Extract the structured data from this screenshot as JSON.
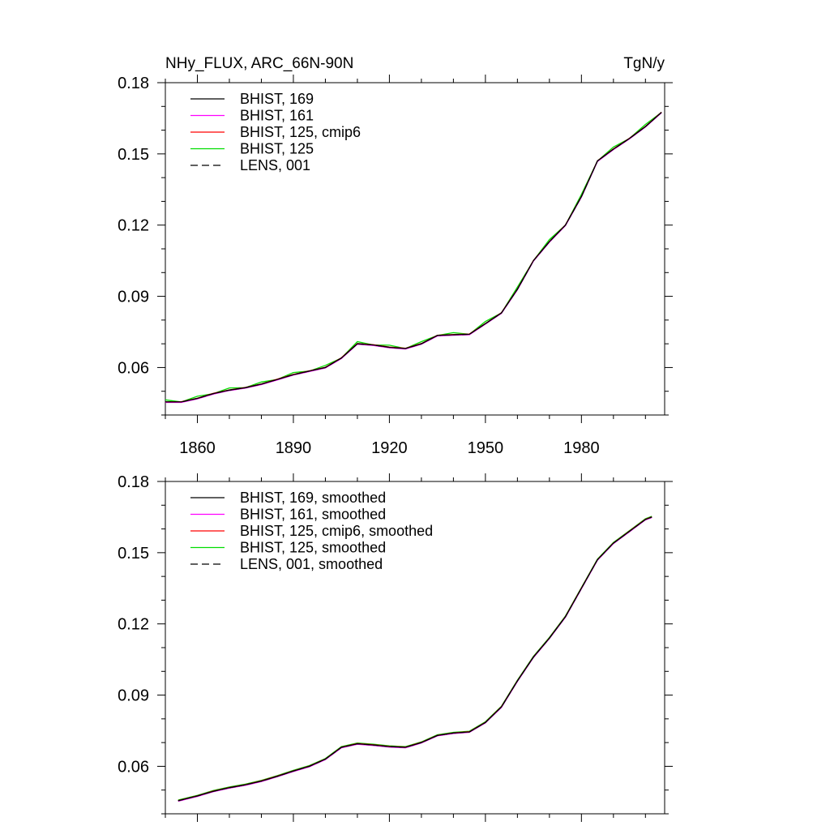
{
  "chart_data": [
    {
      "type": "line",
      "title_left": "NHy_FLUX, ARC_66N-90N",
      "title_right": "TgN/y",
      "xlim": [
        1850,
        2006
      ],
      "ylim": [
        0.04,
        0.18
      ],
      "x_ticks": [
        1860,
        1890,
        1920,
        1950,
        1980
      ],
      "y_ticks": [
        0.06,
        0.09,
        0.12,
        0.15,
        0.18
      ],
      "y_tick_labels": [
        "0.06",
        "0.09",
        "0.12",
        "0.15",
        "0.18"
      ],
      "x_tick_labels": [
        "1860",
        "1890",
        "1920",
        "1950",
        "1980"
      ],
      "legend_position": "top-left",
      "series": [
        {
          "name": "BHIST, 169",
          "color": "#000000",
          "dash": false
        },
        {
          "name": "BHIST, 161",
          "color": "#ff00ff",
          "dash": false
        },
        {
          "name": "BHIST, 125, cmip6",
          "color": "#ff0000",
          "dash": false
        },
        {
          "name": "BHIST, 125",
          "color": "#00dd00",
          "dash": false
        },
        {
          "name": "LENS, 001",
          "color": "#000000",
          "dash": true
        }
      ],
      "x": [
        1850,
        1855,
        1860,
        1865,
        1870,
        1875,
        1880,
        1885,
        1890,
        1895,
        1900,
        1905,
        1910,
        1915,
        1920,
        1925,
        1930,
        1935,
        1940,
        1945,
        1950,
        1955,
        1960,
        1965,
        1970,
        1975,
        1980,
        1985,
        1990,
        1995,
        2000,
        2005
      ],
      "y": [
        0.0455,
        0.0455,
        0.047,
        0.049,
        0.0505,
        0.0515,
        0.053,
        0.055,
        0.057,
        0.0585,
        0.06,
        0.064,
        0.07,
        0.0695,
        0.0685,
        0.068,
        0.07,
        0.0735,
        0.0738,
        0.074,
        0.0785,
        0.083,
        0.093,
        0.105,
        0.113,
        0.12,
        0.132,
        0.147,
        0.152,
        0.1565,
        0.1615,
        0.1675
      ]
    },
    {
      "type": "line",
      "xlim": [
        1850,
        2006
      ],
      "ylim": [
        0.04,
        0.18
      ],
      "y_ticks": [
        0.06,
        0.09,
        0.12,
        0.15,
        0.18
      ],
      "y_tick_labels": [
        "0.06",
        "0.09",
        "0.12",
        "0.15",
        "0.18"
      ],
      "legend_position": "top-left",
      "series": [
        {
          "name": "BHIST, 169, smoothed",
          "color": "#000000",
          "dash": false
        },
        {
          "name": "BHIST, 161, smoothed",
          "color": "#ff00ff",
          "dash": false
        },
        {
          "name": "BHIST, 125, cmip6, smoothed",
          "color": "#ff0000",
          "dash": false
        },
        {
          "name": "BHIST, 125, smoothed",
          "color": "#00dd00",
          "dash": false
        },
        {
          "name": "LENS, 001, smoothed",
          "color": "#000000",
          "dash": true
        }
      ],
      "x": [
        1854,
        1860,
        1865,
        1870,
        1875,
        1880,
        1885,
        1890,
        1895,
        1900,
        1905,
        1910,
        1915,
        1920,
        1925,
        1930,
        1935,
        1940,
        1945,
        1950,
        1955,
        1960,
        1965,
        1970,
        1975,
        1980,
        1985,
        1990,
        1995,
        2000,
        2002
      ],
      "y": [
        0.0455,
        0.0475,
        0.0495,
        0.051,
        0.0522,
        0.0538,
        0.0558,
        0.058,
        0.06,
        0.063,
        0.068,
        0.0695,
        0.069,
        0.0683,
        0.068,
        0.07,
        0.073,
        0.074,
        0.0745,
        0.0785,
        0.085,
        0.096,
        0.106,
        0.114,
        0.123,
        0.135,
        0.147,
        0.154,
        0.159,
        0.164,
        0.165
      ]
    }
  ]
}
